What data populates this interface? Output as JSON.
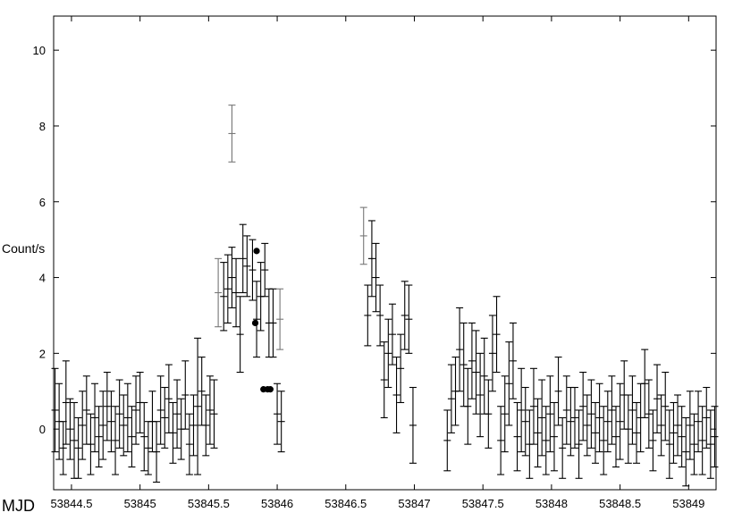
{
  "chart_data": {
    "type": "scatter",
    "title": "",
    "xlabel": "MJD",
    "ylabel": "Count/s",
    "xlim": [
      53844.37,
      53849.2
    ],
    "ylim": [
      -1.6,
      10.9
    ],
    "x_ticks": [
      53844.5,
      53845,
      53845.5,
      53846,
      53846.5,
      53847,
      53847.5,
      53848,
      53848.5,
      53849
    ],
    "x_tick_labels": [
      "53844.5",
      "53845",
      "53845.5",
      "53846",
      "53846.5",
      "53847",
      "53847.5",
      "53848",
      "53848.5",
      "53849"
    ],
    "y_ticks": [
      0,
      2,
      4,
      6,
      8,
      10
    ],
    "y_tick_labels": [
      "0",
      "2",
      "4",
      "6",
      "8",
      "10"
    ],
    "grid": false,
    "legend": "none",
    "series": [
      {
        "marker": "errorbar",
        "color": "#000000",
        "points": [
          [
            53844.38,
            0.5,
            1.1
          ],
          [
            53844.41,
            0.2,
            1.0
          ],
          [
            53844.44,
            -0.5,
            0.7
          ],
          [
            53844.46,
            0.7,
            1.1
          ],
          [
            53844.49,
            0.0,
            0.8
          ],
          [
            53844.52,
            -0.3,
            1.0
          ],
          [
            53844.55,
            -0.5,
            0.8
          ],
          [
            53844.58,
            0.1,
            0.9
          ],
          [
            53844.61,
            0.5,
            0.9
          ],
          [
            53844.64,
            -0.4,
            0.8
          ],
          [
            53844.67,
            0.3,
            0.9
          ],
          [
            53844.7,
            -0.2,
            0.8
          ],
          [
            53844.73,
            0.1,
            0.9
          ],
          [
            53844.76,
            0.6,
            0.9
          ],
          [
            53844.79,
            0.2,
            0.8
          ],
          [
            53844.82,
            -0.3,
            0.9
          ],
          [
            53844.85,
            0.4,
            0.9
          ],
          [
            53844.88,
            0.1,
            0.8
          ],
          [
            53844.91,
            0.3,
            0.9
          ],
          [
            53844.94,
            -0.2,
            0.8
          ],
          [
            53844.97,
            0.5,
            0.9
          ],
          [
            53845.0,
            0.7,
            0.8
          ],
          [
            53845.03,
            -0.2,
            0.9
          ],
          [
            53845.06,
            -0.5,
            0.7
          ],
          [
            53845.09,
            0.2,
            0.8
          ],
          [
            53845.12,
            -0.6,
            0.8
          ],
          [
            53845.15,
            0.5,
            0.9
          ],
          [
            53845.18,
            0.3,
            0.8
          ],
          [
            53845.21,
            0.8,
            0.9
          ],
          [
            53845.24,
            -0.1,
            0.8
          ],
          [
            53845.27,
            0.4,
            0.9
          ],
          [
            53845.3,
            0.0,
            0.8
          ],
          [
            53845.33,
            0.9,
            0.9
          ],
          [
            53845.36,
            -0.4,
            0.8
          ],
          [
            53845.39,
            0.1,
            0.8
          ],
          [
            53845.42,
            0.6,
            1.8
          ],
          [
            53845.45,
            1.0,
            0.9
          ],
          [
            53845.48,
            0.1,
            0.8
          ],
          [
            53845.51,
            0.5,
            0.9
          ],
          [
            53845.54,
            0.4,
            0.9
          ],
          [
            53845.61,
            3.5,
            0.9
          ],
          [
            53845.64,
            3.7,
            0.9
          ],
          [
            53845.67,
            4.0,
            0.8
          ],
          [
            53845.7,
            3.6,
            0.9
          ],
          [
            53845.73,
            2.5,
            1.0
          ],
          [
            53845.75,
            4.5,
            0.9
          ],
          [
            53845.78,
            4.3,
            0.8
          ],
          [
            53845.82,
            4.2,
            0.8
          ],
          [
            53845.85,
            2.9,
            1.0
          ],
          [
            53845.88,
            3.5,
            0.9
          ],
          [
            53845.91,
            4.2,
            0.7
          ],
          [
            53845.94,
            2.8,
            0.9
          ],
          [
            53845.97,
            2.8,
            0.9
          ],
          [
            53846.0,
            0.4,
            0.8
          ],
          [
            53846.03,
            0.2,
            0.8
          ],
          [
            53846.66,
            3.0,
            0.8
          ],
          [
            53846.69,
            4.5,
            1.0
          ],
          [
            53846.72,
            4.0,
            0.9
          ],
          [
            53846.75,
            3.0,
            0.8
          ],
          [
            53846.78,
            1.3,
            1.0
          ],
          [
            53846.81,
            2.0,
            0.9
          ],
          [
            53846.84,
            2.5,
            0.8
          ],
          [
            53846.87,
            0.9,
            1.0
          ],
          [
            53846.9,
            1.6,
            0.9
          ],
          [
            53846.93,
            3.0,
            0.9
          ],
          [
            53846.96,
            2.9,
            0.9
          ],
          [
            53846.99,
            0.1,
            1.0
          ],
          [
            53847.24,
            -0.3,
            0.8
          ],
          [
            53847.27,
            0.8,
            0.9
          ],
          [
            53847.3,
            1.0,
            0.9
          ],
          [
            53847.33,
            2.1,
            1.1
          ],
          [
            53847.36,
            1.7,
            1.1
          ],
          [
            53847.39,
            0.6,
            1.0
          ],
          [
            53847.42,
            1.8,
            1.0
          ],
          [
            53847.45,
            1.5,
            1.1
          ],
          [
            53847.48,
            0.9,
            1.1
          ],
          [
            53847.51,
            1.4,
            1.0
          ],
          [
            53847.54,
            0.4,
            0.9
          ],
          [
            53847.57,
            2.0,
            1.0
          ],
          [
            53847.6,
            2.5,
            1.0
          ],
          [
            53847.63,
            -0.3,
            0.9
          ],
          [
            53847.66,
            0.4,
            1.0
          ],
          [
            53847.69,
            1.2,
            1.1
          ],
          [
            53847.72,
            1.8,
            1.0
          ],
          [
            53847.75,
            -0.2,
            0.9
          ],
          [
            53847.78,
            0.5,
            1.1
          ],
          [
            53847.81,
            0.2,
            0.9
          ],
          [
            53847.84,
            -0.4,
            0.9
          ],
          [
            53847.87,
            0.6,
            1.0
          ],
          [
            53847.9,
            -0.1,
            0.9
          ],
          [
            53847.93,
            0.3,
            1.0
          ],
          [
            53847.96,
            -0.3,
            0.9
          ],
          [
            53847.99,
            0.4,
            1.0
          ],
          [
            53848.02,
            -0.2,
            0.9
          ],
          [
            53848.05,
            1.0,
            0.9
          ],
          [
            53848.08,
            -0.5,
            0.8
          ],
          [
            53848.11,
            0.5,
            0.9
          ],
          [
            53848.14,
            0.2,
            0.9
          ],
          [
            53848.17,
            0.3,
            0.8
          ],
          [
            53848.2,
            -0.4,
            0.9
          ],
          [
            53848.23,
            0.6,
            0.9
          ],
          [
            53848.26,
            0.1,
            0.8
          ],
          [
            53848.29,
            0.4,
            0.9
          ],
          [
            53848.32,
            -0.1,
            0.8
          ],
          [
            53848.35,
            0.3,
            0.9
          ],
          [
            53848.38,
            -0.3,
            0.9
          ],
          [
            53848.41,
            0.2,
            0.8
          ],
          [
            53848.44,
            0.5,
            0.9
          ],
          [
            53848.47,
            -0.2,
            0.8
          ],
          [
            53848.5,
            0.2,
            1.0
          ],
          [
            53848.53,
            0.9,
            0.9
          ],
          [
            53848.56,
            0.0,
            0.9
          ],
          [
            53848.59,
            0.5,
            0.9
          ],
          [
            53848.62,
            -0.1,
            0.8
          ],
          [
            53848.65,
            0.3,
            0.9
          ],
          [
            53848.68,
            1.2,
            0.9
          ],
          [
            53848.71,
            0.4,
            0.9
          ],
          [
            53848.74,
            -0.3,
            0.8
          ],
          [
            53848.77,
            0.8,
            0.9
          ],
          [
            53848.8,
            0.1,
            0.8
          ],
          [
            53848.83,
            0.6,
            0.9
          ],
          [
            53848.86,
            -0.4,
            0.9
          ],
          [
            53848.89,
            -0.1,
            0.8
          ],
          [
            53848.92,
            0.1,
            0.8
          ],
          [
            53848.95,
            -0.2,
            0.8
          ],
          [
            53848.98,
            -0.6,
            0.9
          ],
          [
            53849.01,
            0.1,
            0.9
          ],
          [
            53849.04,
            -0.4,
            0.8
          ],
          [
            53849.07,
            0.2,
            0.8
          ],
          [
            53849.1,
            -0.3,
            0.9
          ],
          [
            53849.13,
            0.3,
            0.8
          ],
          [
            53849.16,
            -0.4,
            0.9
          ],
          [
            53849.19,
            -0.2,
            0.8
          ]
        ]
      },
      {
        "marker": "errorbar",
        "color": "#777777",
        "points": [
          [
            53845.57,
            3.6,
            0.9
          ],
          [
            53845.67,
            7.8,
            0.75
          ],
          [
            53846.63,
            5.1,
            0.75
          ],
          [
            53846.02,
            2.9,
            0.8
          ]
        ]
      },
      {
        "marker": "dot",
        "color": "#000000",
        "points": [
          [
            53845.84,
            2.8
          ],
          [
            53845.85,
            4.7
          ],
          [
            53845.9,
            1.05
          ],
          [
            53845.93,
            1.05
          ],
          [
            53845.95,
            1.05
          ]
        ]
      }
    ]
  }
}
